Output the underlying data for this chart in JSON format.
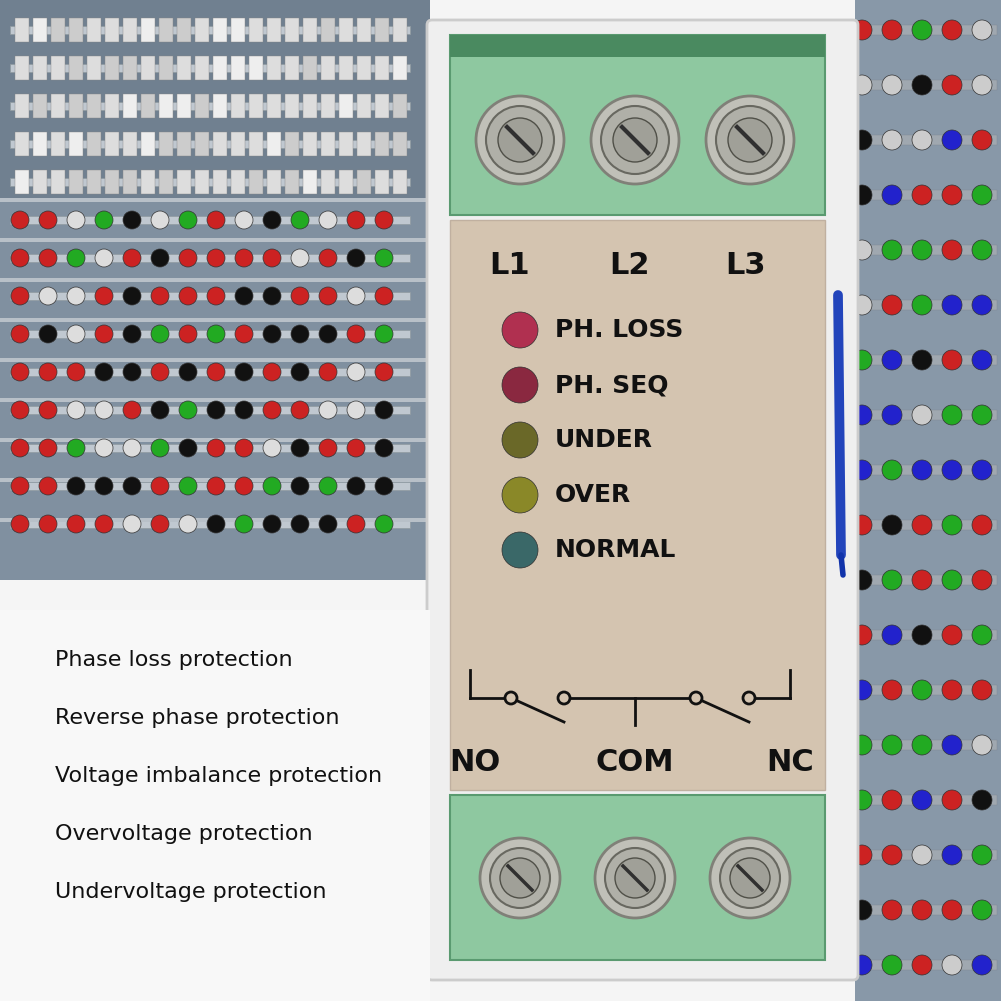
{
  "bg_color": "#f5f5f5",
  "cabinet_bg_left": "#9aa8b0",
  "cabinet_bg_right": "#9aa8b0",
  "device_white": "#eeeeee",
  "terminal_green": "#8ec8a0",
  "terminal_green_dark": "#5a9a70",
  "panel_beige": "#d4c4b0",
  "indicator_labels": [
    "PH. LOSS",
    "PH. SEQ",
    "UNDER",
    "OVER",
    "NORMAL"
  ],
  "indicator_colors": [
    "#b03050",
    "#8a2840",
    "#6a6828",
    "#8a8828",
    "#3a6868"
  ],
  "terminal_labels_top": [
    "L1",
    "L2",
    "L3"
  ],
  "terminal_labels_bot": [
    "NO",
    "COM",
    "NC"
  ],
  "feature_list": [
    "Phase loss protection",
    "Reverse phase protection",
    "Voltage imbalance protection",
    "Overvoltage protection",
    "Undervoltage protection"
  ],
  "feature_text_color": "#111111",
  "feature_fontsize": 16,
  "screw_outer_color": "#c0c0b8",
  "screw_inner_color": "#a0a098",
  "screw_slot_color": "#303030"
}
